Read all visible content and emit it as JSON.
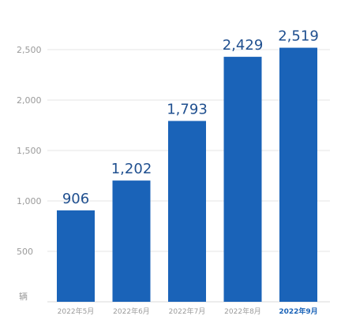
{
  "chart_data": {
    "type": "bar",
    "title": "",
    "xlabel": "",
    "ylabel": "",
    "unit_label": "辆",
    "categories": [
      "2022年5月",
      "2022年6月",
      "2022年7月",
      "2022年8月",
      "2022年9月"
    ],
    "values": [
      906,
      1202,
      1793,
      2429,
      2519
    ],
    "value_labels": [
      "906",
      "1,202",
      "1,793",
      "2,429",
      "2,519"
    ],
    "highlight_category": "2022年9月",
    "ylim": [
      0,
      2500
    ],
    "yticks": [
      500,
      1000,
      1500,
      2000,
      2500
    ],
    "ytick_labels": [
      "500",
      "1,000",
      "1,500",
      "2,000",
      "2,500"
    ],
    "grid": true,
    "legend": "none",
    "colors": {
      "bar": "#1a63b8",
      "value_label": "#1f4f8f",
      "grid": "#e6e6e6",
      "tick_label": "#9a9a9a",
      "highlight_tick_label": "#1a63b8"
    }
  }
}
